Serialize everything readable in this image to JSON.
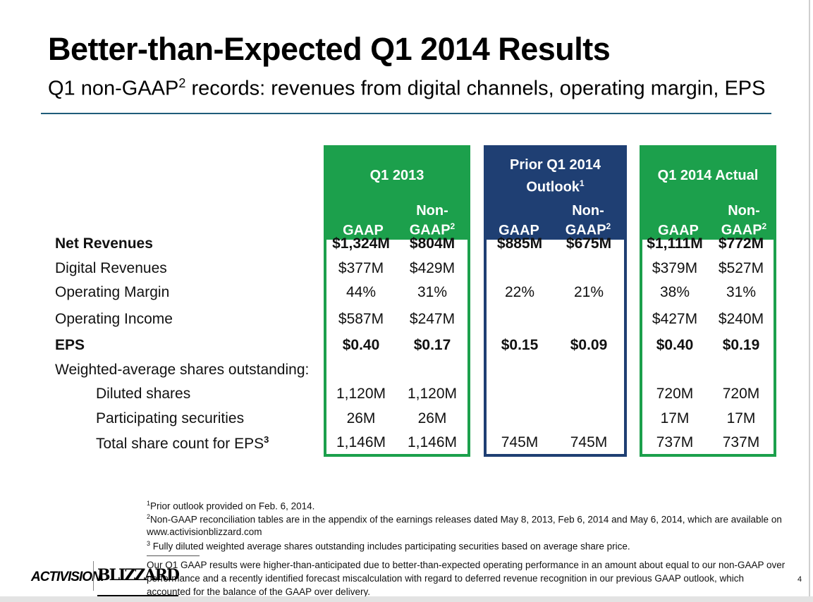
{
  "slide": {
    "title": "Better-than-Expected Q1 2014 Results",
    "subtitle_pre": "Q1 non-GAAP",
    "subtitle_sup": "2",
    "subtitle_post": " records: revenues from digital channels, operating margin, EPS",
    "page_number": "4"
  },
  "panels": [
    {
      "title": "Q1 2013",
      "title_line2": "",
      "title_sup": "",
      "col1": "GAAP",
      "col2_line1": "Non-",
      "col2_line2": "GAAP",
      "col2_sup": "2"
    },
    {
      "title": "Prior Q1 2014",
      "title_line2": "Outlook",
      "title_sup": "1",
      "col1": "GAAP",
      "col2_line1": "Non-",
      "col2_line2": "GAAP",
      "col2_sup": "2"
    },
    {
      "title": "Q1 2014 Actual",
      "title_line2": "",
      "title_sup": "",
      "col1": "GAAP",
      "col2_line1": "Non-",
      "col2_line2": "GAAP",
      "col2_sup": "2"
    }
  ],
  "rows": [
    {
      "label": "Net Revenues",
      "bold": true,
      "values": [
        "$1,324M",
        "$804M",
        "$885M",
        "$675M",
        "$1,111M",
        "$772M"
      ]
    },
    {
      "label": "Digital Revenues",
      "bold": false,
      "values": [
        "$377M",
        "$429M",
        "",
        "",
        "$379M",
        "$527M"
      ]
    },
    {
      "label": "Operating Margin",
      "bold": false,
      "values": [
        "44%",
        "31%",
        "22%",
        "21%",
        "38%",
        "31%"
      ]
    },
    {
      "label": "Operating Income",
      "bold": false,
      "values": [
        "$587M",
        "$247M",
        "",
        "",
        "$427M",
        "$240M"
      ]
    },
    {
      "label": "EPS",
      "bold": true,
      "values": [
        "$0.40",
        "$0.17",
        "$0.15",
        "$0.09",
        "$0.40",
        "$0.19"
      ]
    },
    {
      "label": "Weighted-average shares outstanding:",
      "bold": false,
      "values": [
        "",
        "",
        "",
        "",
        "",
        ""
      ]
    },
    {
      "label": "Diluted shares",
      "bold": false,
      "values": [
        "1,120M",
        "1,120M",
        "",
        "",
        "720M",
        "720M"
      ]
    },
    {
      "label": "Participating securities",
      "bold": false,
      "values": [
        "26M",
        "26M",
        "",
        "",
        "17M",
        "17M"
      ]
    },
    {
      "label": "Total share count for EPS",
      "label_sup": "3",
      "bold": false,
      "values": [
        "1,146M",
        "1,146M",
        "745M",
        "745M",
        "737M",
        "737M"
      ]
    }
  ],
  "footnotes": {
    "fn1_sup": "1",
    "fn1": "Prior outlook provided on Feb. 6, 2014.",
    "fn2_sup": "2",
    "fn2_line1": "Non-GAAP reconciliation tables are in the appendix of the earnings releases dated May 8, 2013, Feb 6, 2014 and May 6, 2014, which are available on",
    "fn2_line2": "www.activisionblizzard.com",
    "fn3_sup": "3",
    "fn3": " Fully diluted weighted average shares outstanding includes participating securities based on average share price.",
    "note_line1": "Our Q1 GAAP results were higher-than-anticipated due to better-than-expected operating performance in an amount about equal to our non-GAAP over",
    "note_line2": "performance and a recently identified forecast miscalculation with regard to deferred revenue recognition in our previous GAAP outlook, which",
    "note_line3": "accounted for the balance of the GAAP over delivery."
  },
  "logos": {
    "activision": "ACTIVISION.",
    "blizzard": "BLIZZARD"
  },
  "colors": {
    "green": "#1ca04c",
    "blue": "#1f3f73",
    "rule": "#1f5c7a"
  }
}
